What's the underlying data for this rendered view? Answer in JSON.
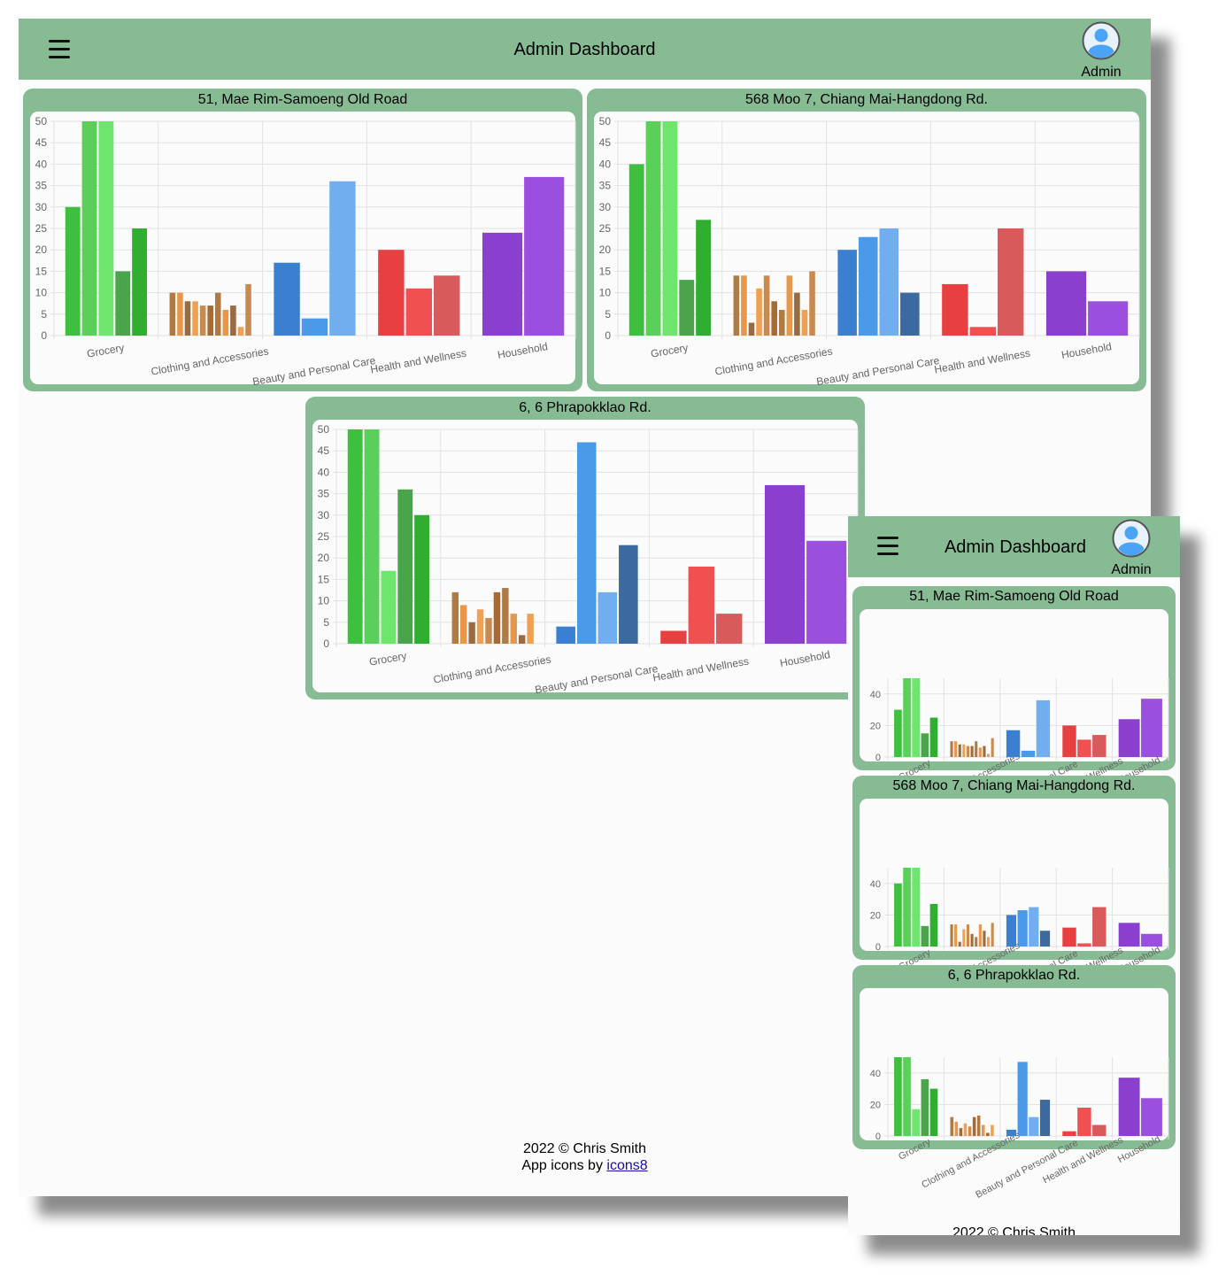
{
  "header": {
    "title": "Admin Dashboard",
    "user_label": "Admin"
  },
  "colors": {
    "header": "#86bb94",
    "grocery": "#3fbf3f",
    "clothing": "#b07a45",
    "beauty": "#3a7fd0",
    "health": "#e84040",
    "household": "#8a3fcf"
  },
  "icons": {
    "menu": "hamburger-menu-icon",
    "user": "user-avatar-icon"
  },
  "chart_data": [
    {
      "type": "bar",
      "title": "51, Mae Rim-Samoeng Old Road",
      "categories": [
        "Grocery",
        "Clothing and Accessories",
        "Beauty and Personal Care",
        "Health and Wellness",
        "Household"
      ],
      "groups": [
        [
          30,
          50,
          50,
          15,
          25
        ],
        [
          10,
          10,
          8,
          8,
          7,
          7,
          10,
          6,
          7,
          2,
          12
        ],
        [
          17,
          4,
          36
        ],
        [
          20,
          11,
          14
        ],
        [
          24,
          37
        ]
      ],
      "ylim": [
        0,
        50
      ],
      "grid": true
    },
    {
      "type": "bar",
      "title": "568 Moo 7, Chiang Mai-Hangdong Rd.",
      "categories": [
        "Grocery",
        "Clothing and Accessories",
        "Beauty and Personal Care",
        "Health and Wellness",
        "Household"
      ],
      "groups": [
        [
          40,
          50,
          50,
          13,
          27
        ],
        [
          14,
          14,
          3,
          11,
          14,
          8,
          6,
          14,
          10,
          6,
          15
        ],
        [
          20,
          23,
          25,
          10
        ],
        [
          12,
          2,
          25
        ],
        [
          15,
          8
        ]
      ],
      "ylim": [
        0,
        50
      ],
      "grid": true
    },
    {
      "type": "bar",
      "title": "6, 6 Phrapokklao Rd.",
      "categories": [
        "Grocery",
        "Clothing and Accessories",
        "Beauty and Personal Care",
        "Health and Wellness",
        "Household"
      ],
      "groups": [
        [
          50,
          50,
          17,
          36,
          30
        ],
        [
          12,
          9,
          5,
          8,
          6,
          12,
          13,
          7,
          2,
          7
        ],
        [
          4,
          47,
          12,
          23
        ],
        [
          3,
          18,
          7
        ],
        [
          37,
          24
        ]
      ],
      "ylim": [
        0,
        50
      ],
      "grid": true
    }
  ],
  "footer": {
    "copyright": "2022 © Chris Smith",
    "icons_prefix": "App icons by ",
    "icons_link": "icons8"
  }
}
